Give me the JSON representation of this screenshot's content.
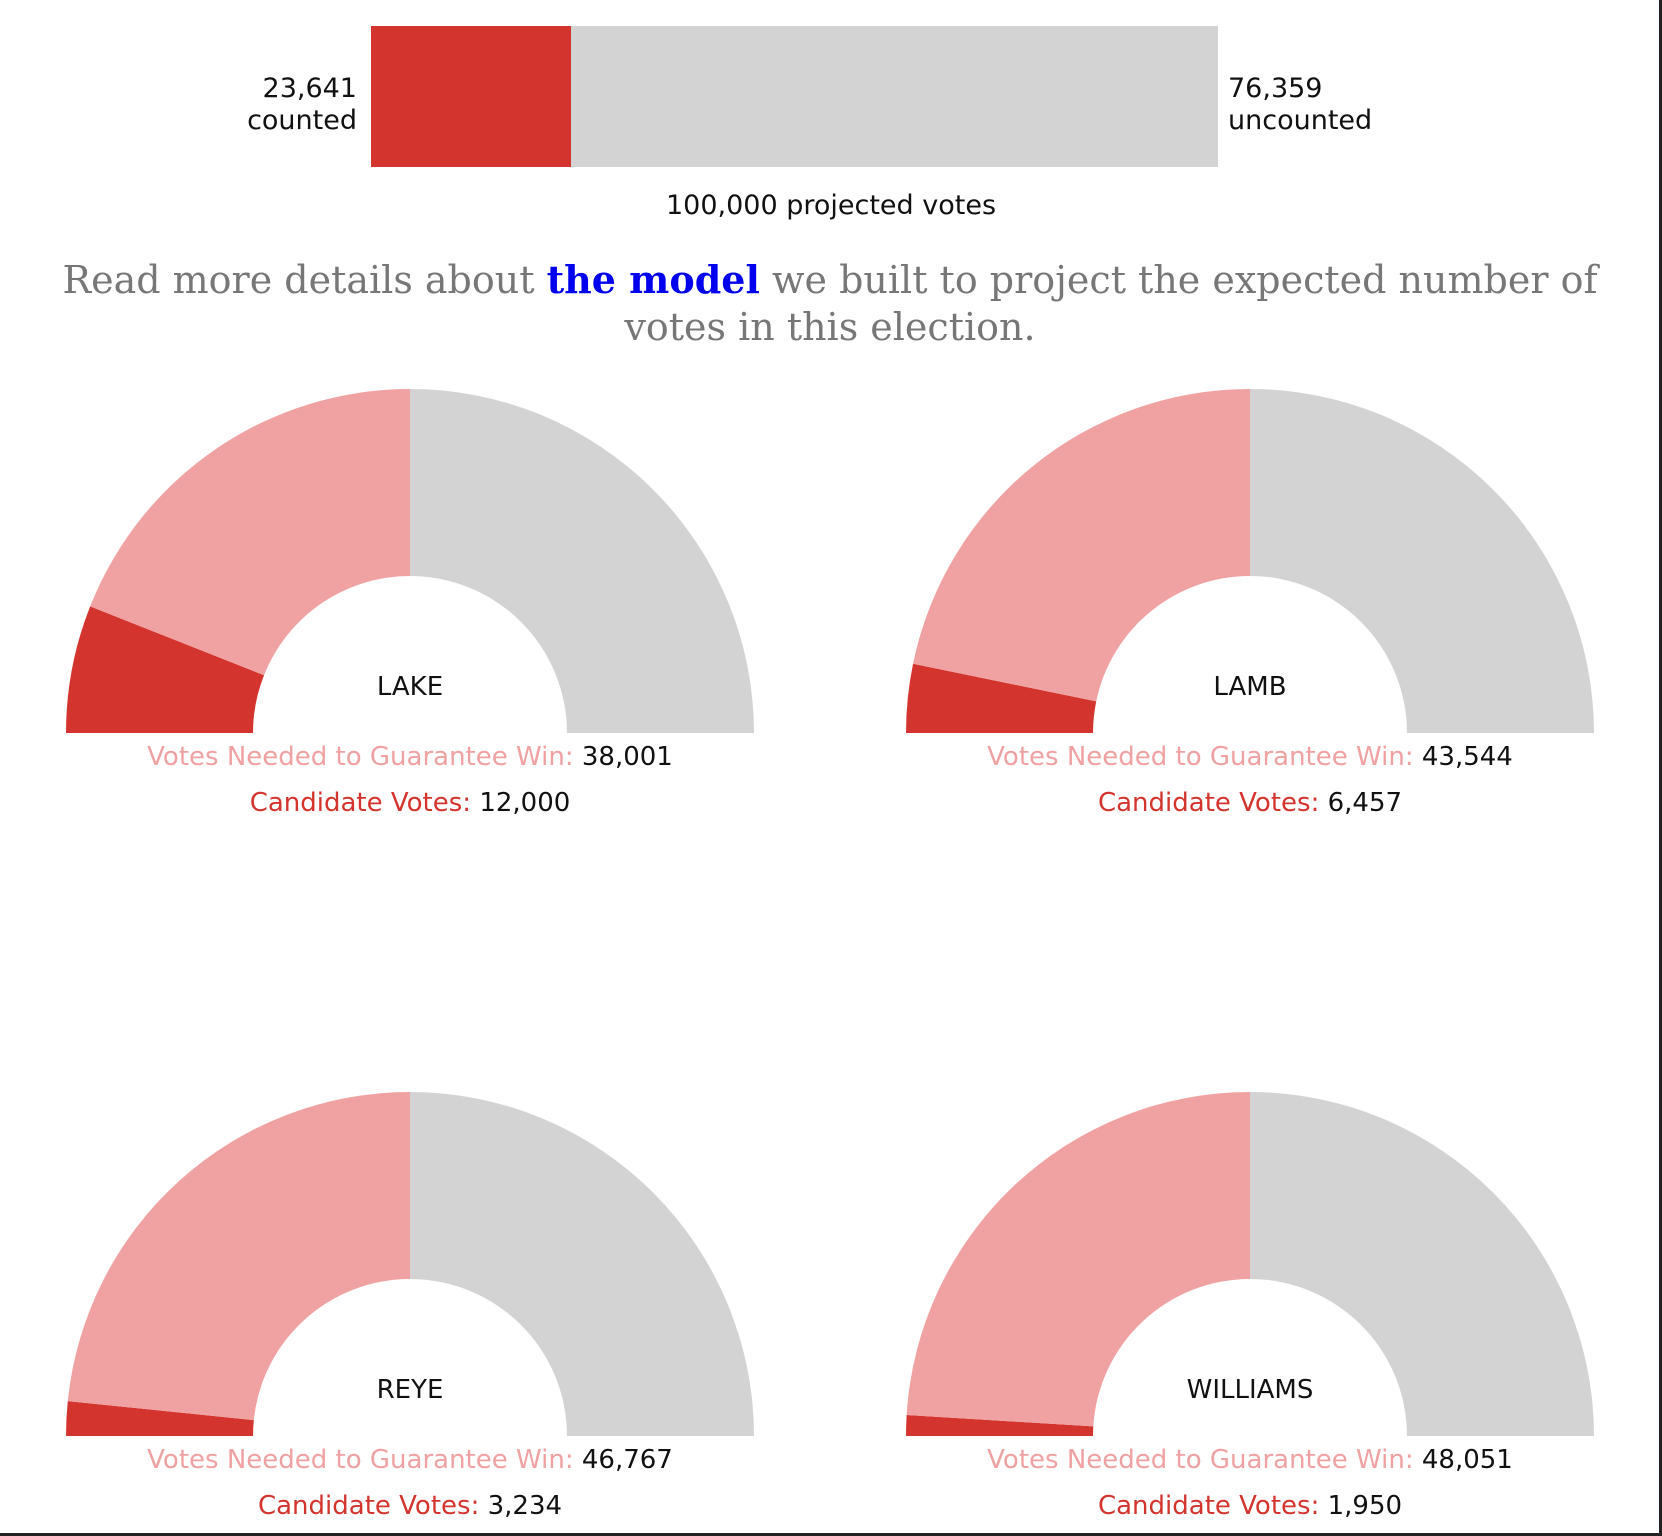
{
  "progress": {
    "counted_number": "23,641",
    "counted_label": "counted",
    "uncounted_number": "76,359",
    "uncounted_label": "uncounted",
    "projected_label": "100,000 projected votes",
    "counted": 23641,
    "projected": 100000
  },
  "model_note": {
    "before": "Read more details about ",
    "link": "the model",
    "after": " we built to project the expected number of votes in this election."
  },
  "labels": {
    "needed": "Votes Needed to Guarantee Win:",
    "candidate": "Candidate Votes:"
  },
  "colors": {
    "candidate": "#d3352e",
    "needed": "#f0a1a1",
    "remaining": "#d3d3d3",
    "link": "#0000ee"
  },
  "chart_data": {
    "type": "gauge",
    "total": 100000,
    "candidates": [
      {
        "name": "LAKE",
        "candidate_votes": 12000,
        "needed": 38001,
        "candidate_votes_text": "12,000",
        "needed_text": "38,001"
      },
      {
        "name": "LAMB",
        "candidate_votes": 6457,
        "needed": 43544,
        "candidate_votes_text": "6,457",
        "needed_text": "43,544"
      },
      {
        "name": "REYE",
        "candidate_votes": 3234,
        "needed": 46767,
        "candidate_votes_text": "3,234",
        "needed_text": "46,767"
      },
      {
        "name": "WILLIAMS",
        "candidate_votes": 1950,
        "needed": 48051,
        "candidate_votes_text": "1,950",
        "needed_text": "48,051"
      }
    ]
  }
}
